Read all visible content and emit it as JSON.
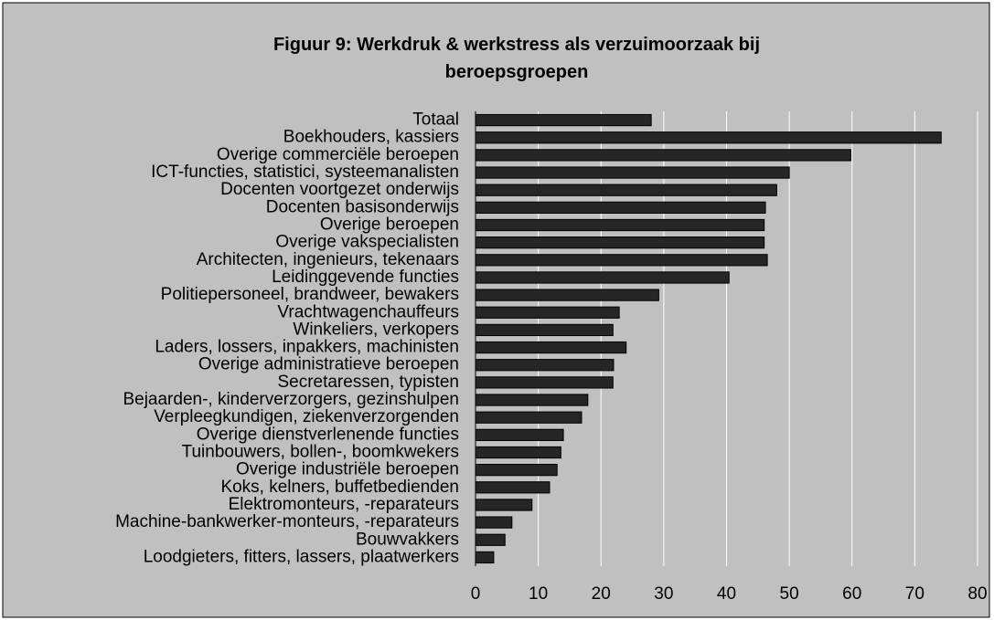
{
  "chart_data": {
    "type": "bar",
    "orientation": "horizontal",
    "title": "Figuur 9: Werkdruk & werkstress als verzuimoorzaak bij beroepsgroepen",
    "categories": [
      "Totaal",
      "Boekhouders, kassiers",
      "Overige commerciële beroepen",
      "ICT-functies, statistici, systeemanalisten",
      "Docenten voortgezet onderwijs",
      "Docenten basisonderwijs",
      "Overige beroepen",
      "Overige vakspecialisten",
      "Architecten, ingenieurs, tekenaars",
      "Leidinggevende functies",
      "Politiepersoneel, brandweer, bewakers",
      "Vrachtwagenchauffeurs",
      "Winkeliers, verkopers",
      "Laders, lossers, inpakkers, machinisten",
      "Overige administratieve beroepen",
      "Secretaressen, typisten",
      "Bejaarden-, kinderverzorgers, gezinshulpen",
      "Verpleegkundigen, ziekenverzorgenden",
      "Overige dienstverlenende functies",
      "Tuinbouwers, bollen-, boomkwekers",
      "Overige industriële beroepen",
      "Koks, kelners, buffetbedienden",
      "Elektromonteurs, -reparateurs",
      "Machine-bankwerker-monteurs, -reparateurs",
      "Bouwvakkers",
      "Loodgieters, fitters, lassers, plaatwerkers"
    ],
    "values": [
      28,
      74.2,
      59.8,
      50,
      48,
      46.2,
      46,
      46,
      46.5,
      40.4,
      29.2,
      22.9,
      21.9,
      24,
      22,
      21.9,
      17.9,
      16.9,
      14,
      13.6,
      13,
      11.8,
      9,
      5.8,
      4.7,
      2.9
    ],
    "color": "#262626",
    "xlim": [
      0,
      80
    ],
    "xticks": [
      0,
      10,
      20,
      30,
      40,
      50,
      60,
      70,
      80
    ],
    "grid": true
  }
}
